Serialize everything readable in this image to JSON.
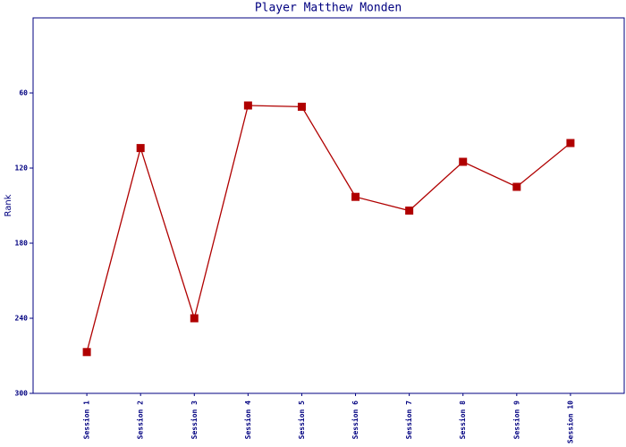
{
  "chart_data": {
    "type": "line",
    "title": "Player Matthew Monden",
    "y_label": "Rank",
    "categories": [
      "Session 1",
      "Session 2",
      "Session 3",
      "Session 4",
      "Session 5",
      "Session 6",
      "Session 7",
      "Session 8",
      "Session 9",
      "Session 10"
    ],
    "series": [
      {
        "name": "Rank",
        "color": "#b00000",
        "values": [
          267,
          104,
          240,
          70,
          71,
          143,
          154,
          115,
          135,
          100
        ]
      }
    ],
    "ylim": [
      300,
      0
    ],
    "yticks": [
      60,
      120,
      180,
      240,
      300
    ]
  }
}
